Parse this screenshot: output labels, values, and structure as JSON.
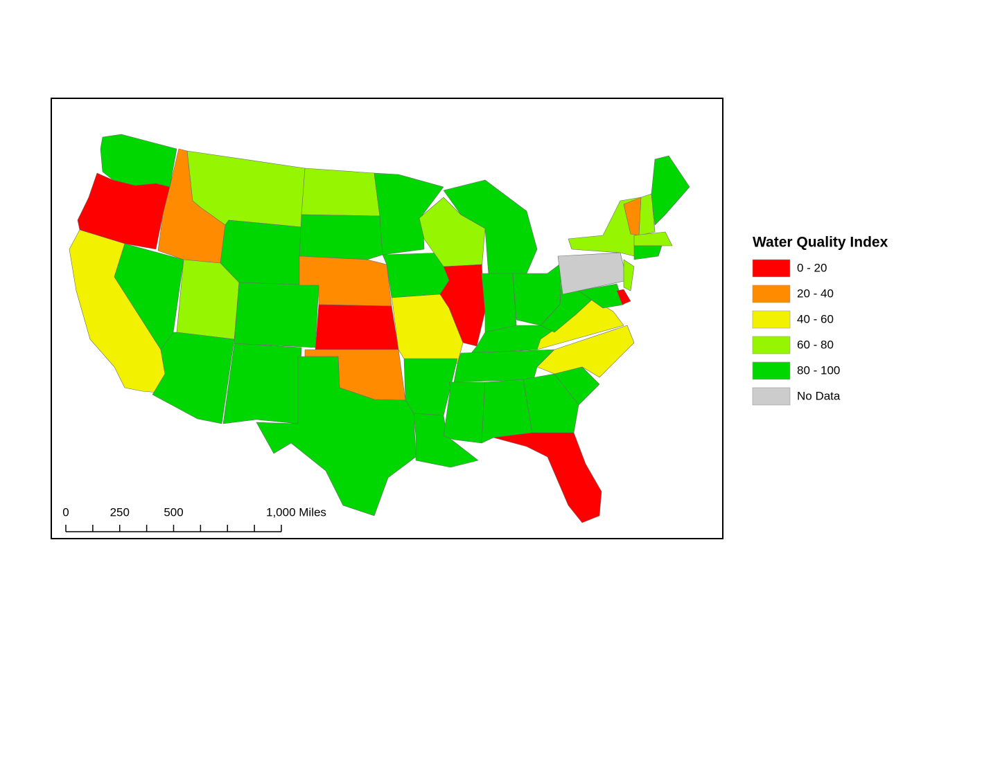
{
  "legend": {
    "title": "Water Quality Index",
    "items": [
      {
        "label": "0 - 20",
        "color": "#ff0000"
      },
      {
        "label": "20 - 40",
        "color": "#ff8c00"
      },
      {
        "label": "40 - 60",
        "color": "#f2f200"
      },
      {
        "label": "60 - 80",
        "color": "#96f500"
      },
      {
        "label": "80 - 100",
        "color": "#00d600"
      },
      {
        "label": "No Data",
        "color": "#cccccc"
      }
    ]
  },
  "scale_bar": {
    "labels": [
      0,
      250,
      500,
      {
        "value": 1000,
        "label": "1,000 Miles"
      }
    ],
    "ticks": [
      0,
      125,
      250,
      375,
      500,
      625,
      750,
      875,
      1000
    ]
  }
}
